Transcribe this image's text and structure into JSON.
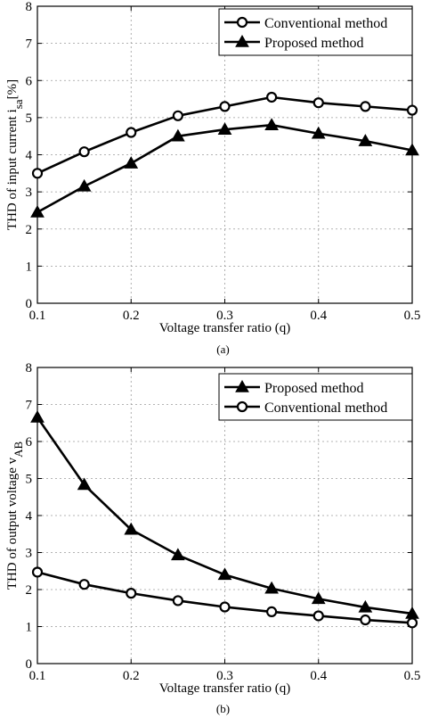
{
  "chart_data": [
    {
      "type": "line",
      "caption": "(a)",
      "xlabel": "Voltage transfer ratio (q)",
      "ylabel_main": "THD of input current i",
      "ylabel_sub": "sa",
      "ylabel_unit": "[%]",
      "xlim": [
        0.1,
        0.5
      ],
      "ylim": [
        0,
        8
      ],
      "xticks": [
        "0.1",
        "0.2",
        "0.3",
        "0.4",
        "0.5"
      ],
      "yticks": [
        "0",
        "1",
        "2",
        "3",
        "4",
        "5",
        "6",
        "7",
        "8"
      ],
      "grid": true,
      "legend_position": "top-right",
      "x": [
        0.1,
        0.15,
        0.2,
        0.25,
        0.3,
        0.35,
        0.4,
        0.45,
        0.5
      ],
      "series": [
        {
          "name": "Conventional method",
          "marker": "circle",
          "values": [
            3.5,
            4.08,
            4.6,
            5.05,
            5.3,
            5.55,
            5.4,
            5.3,
            5.2
          ]
        },
        {
          "name": "Proposed method",
          "marker": "triangle",
          "values": [
            2.45,
            3.15,
            3.77,
            4.5,
            4.68,
            4.8,
            4.57,
            4.37,
            4.12
          ]
        }
      ]
    },
    {
      "type": "line",
      "caption": "(b)",
      "xlabel": "Voltage transfer ratio (q)",
      "ylabel_main": "THD of output voltage v",
      "ylabel_sub": "AB",
      "ylabel_unit": "",
      "xlim": [
        0.1,
        0.5
      ],
      "ylim": [
        0,
        8
      ],
      "xticks": [
        "0.1",
        "0.2",
        "0.3",
        "0.4",
        "0.5"
      ],
      "yticks": [
        "0",
        "1",
        "2",
        "3",
        "4",
        "5",
        "6",
        "7",
        "8"
      ],
      "grid": true,
      "legend_position": "top-right",
      "x": [
        0.1,
        0.15,
        0.2,
        0.25,
        0.3,
        0.35,
        0.4,
        0.45,
        0.5
      ],
      "series": [
        {
          "name": "Proposed method",
          "marker": "triangle",
          "values": [
            6.65,
            4.83,
            3.62,
            2.93,
            2.4,
            2.03,
            1.75,
            1.52,
            1.35
          ]
        },
        {
          "name": "Conventional method",
          "marker": "circle",
          "values": [
            2.47,
            2.14,
            1.9,
            1.7,
            1.53,
            1.4,
            1.29,
            1.18,
            1.1
          ]
        }
      ]
    }
  ]
}
